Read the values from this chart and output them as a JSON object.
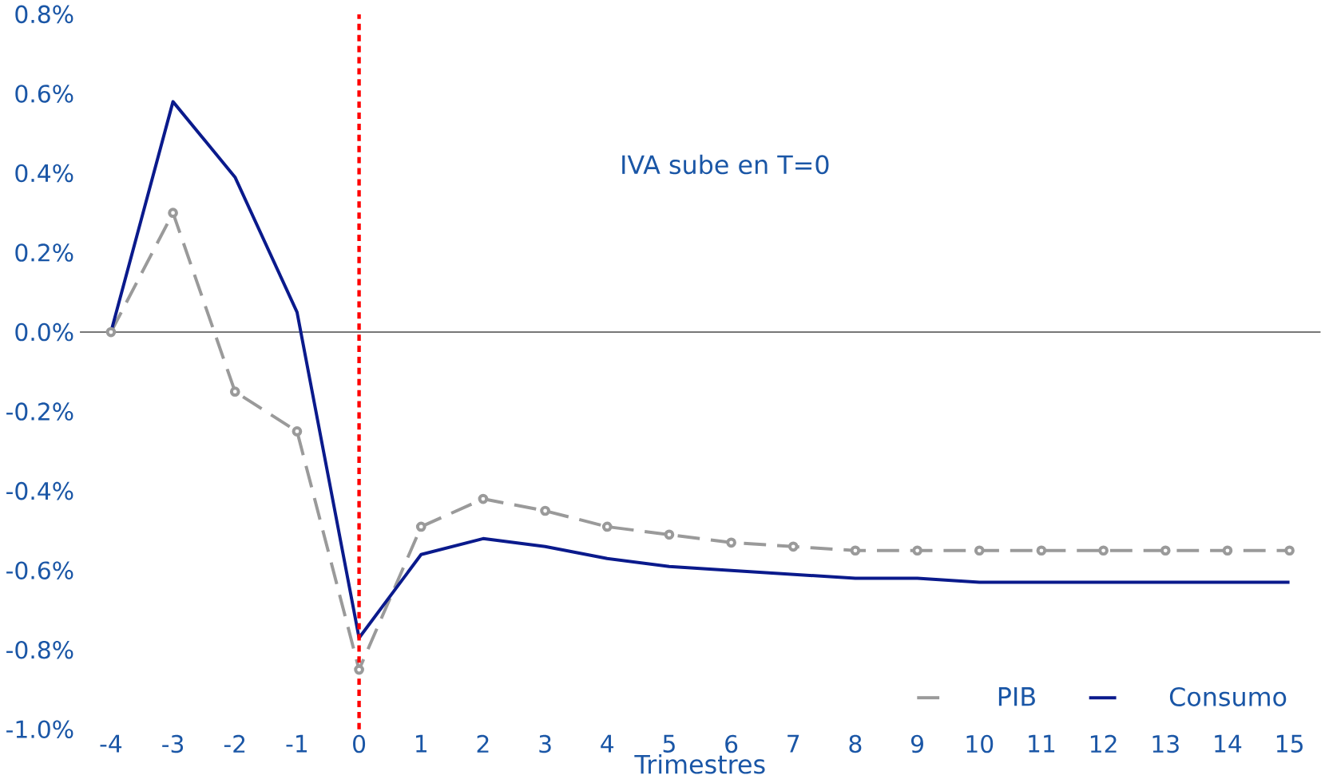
{
  "chart_data": {
    "type": "line",
    "xlabel": "Trimestres",
    "x": [
      -4,
      -3,
      -2,
      -1,
      0,
      1,
      2,
      3,
      4,
      5,
      6,
      7,
      8,
      9,
      10,
      11,
      12,
      13,
      14,
      15
    ],
    "series": [
      {
        "name": "PIB",
        "color": "#9a9a9a",
        "line_style": "dashed",
        "marker": "circle",
        "values": [
          0.0,
          0.3,
          -0.15,
          -0.25,
          -0.85,
          -0.49,
          -0.42,
          -0.45,
          -0.49,
          -0.51,
          -0.53,
          -0.54,
          -0.55,
          -0.55,
          -0.55,
          -0.55,
          -0.55,
          -0.55,
          -0.55,
          -0.55
        ]
      },
      {
        "name": "Consumo",
        "color": "#0a1a8c",
        "line_style": "solid",
        "marker": "none",
        "values": [
          0.0,
          0.58,
          0.39,
          0.05,
          -0.77,
          -0.56,
          -0.52,
          -0.54,
          -0.57,
          -0.59,
          -0.6,
          -0.61,
          -0.62,
          -0.62,
          -0.63,
          -0.63,
          -0.63,
          -0.63,
          -0.63,
          -0.63
        ]
      }
    ],
    "xlim": [
      -4.5,
      15.5
    ],
    "xticks": [
      -4,
      -3,
      -2,
      -1,
      0,
      1,
      2,
      3,
      4,
      5,
      6,
      7,
      8,
      9,
      10,
      11,
      12,
      13,
      14,
      15
    ],
    "ylim": [
      -1.0,
      0.8
    ],
    "yticks": [
      {
        "value": -1.0,
        "label": "-1.0%"
      },
      {
        "value": -0.8,
        "label": "-0.8%"
      },
      {
        "value": -0.6,
        "label": "-0.6%"
      },
      {
        "value": -0.4,
        "label": "-0.4%"
      },
      {
        "value": -0.2,
        "label": "-0.2%"
      },
      {
        "value": 0.0,
        "label": "0.0%"
      },
      {
        "value": 0.2,
        "label": "0.2%"
      },
      {
        "value": 0.4,
        "label": "0.4%"
      },
      {
        "value": 0.6,
        "label": "0.6%"
      },
      {
        "value": 0.8,
        "label": "0.8%"
      }
    ],
    "ref_lines": [
      {
        "axis": "x",
        "value": 0,
        "color": "#ff0000",
        "line_style": "dotted"
      }
    ],
    "annotations": [
      "IVA sube en T=0"
    ],
    "legend": "bottom right",
    "grid": false
  }
}
